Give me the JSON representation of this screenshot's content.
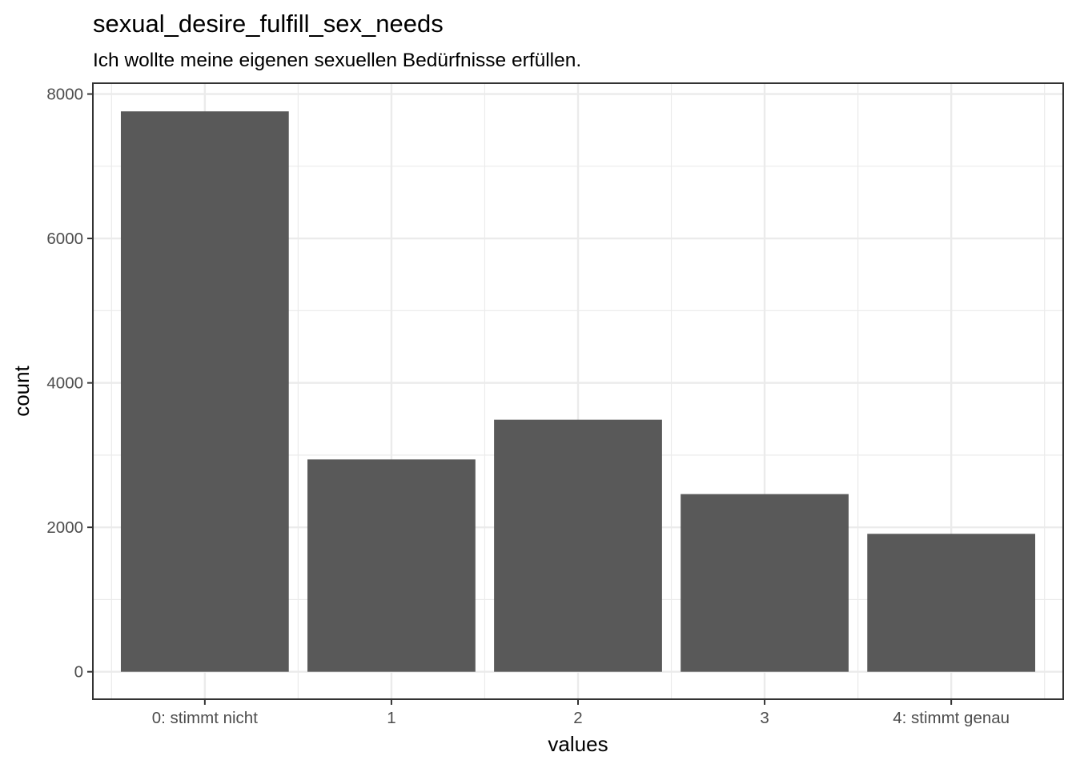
{
  "chart_data": {
    "type": "bar",
    "title": "sexual_desire_fulfill_sex_needs",
    "subtitle": "Ich wollte meine eigenen sexuellen Bedürfnisse erfüllen.",
    "xlabel": "values",
    "ylabel": "count",
    "categories": [
      "0: stimmt nicht",
      "1",
      "2",
      "3",
      "4: stimmt genau"
    ],
    "values": [
      7760,
      2940,
      3490,
      2460,
      1910
    ],
    "ylim": [
      -380,
      8150
    ],
    "yticks": [
      0,
      2000,
      4000,
      6000,
      8000
    ],
    "ytick_labels": [
      "0",
      "2000",
      "4000",
      "6000",
      "8000"
    ],
    "grid": true,
    "bar_color": "#595959",
    "grid_color": "#ebebeb",
    "panel_border_color": "#333333"
  }
}
